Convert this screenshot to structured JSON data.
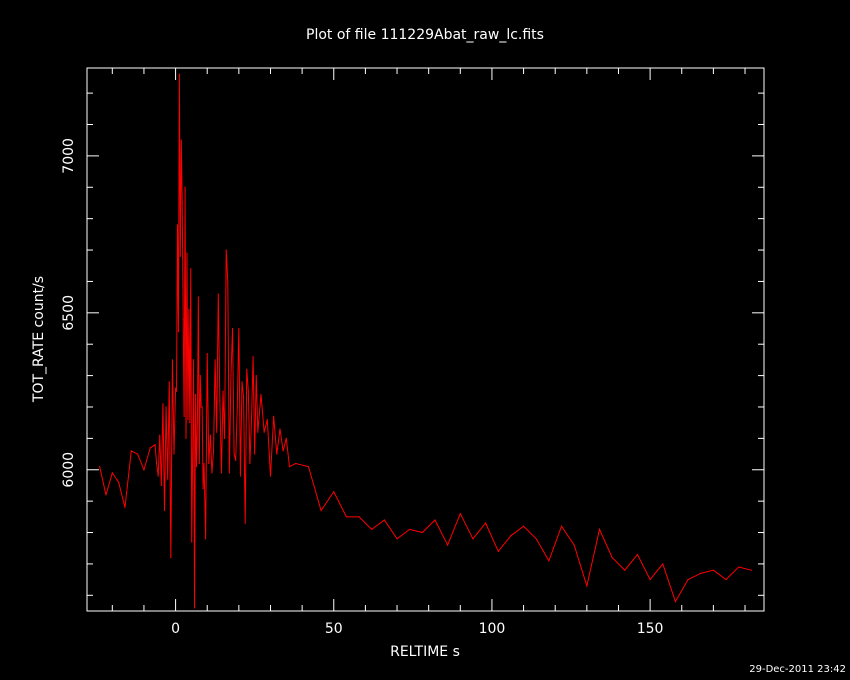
{
  "chart_data": {
    "type": "line",
    "title": "Plot of file 111229Abat_raw_lc.fits",
    "xlabel": "RELTIME  s",
    "ylabel": "TOT_RATE  count/s",
    "xlim": [
      -28,
      186
    ],
    "ylim": [
      5550,
      7280
    ],
    "x_ticks": [
      0,
      50,
      100,
      150
    ],
    "y_ticks": [
      6000,
      6500,
      7000
    ],
    "grid": false,
    "line_color": "#ff0000",
    "axes_color": "#ffffff",
    "background": "#000000",
    "series": [
      {
        "x": [
          -24,
          -22,
          -20,
          -18,
          -16,
          -14,
          -12,
          -10,
          -8,
          -6.5,
          -6,
          -5.5,
          -5,
          -4.5,
          -4,
          -3.5,
          -3,
          -2.5,
          -2,
          -1.5,
          -1,
          -0.5,
          0,
          0.3,
          0.6,
          0.9,
          1.2,
          1.5,
          1.8,
          2.1,
          2.4,
          2.7,
          3,
          3.3,
          3.6,
          3.9,
          4.2,
          4.5,
          4.8,
          5.1,
          5.4,
          5.7,
          6,
          6.3,
          6.6,
          6.9,
          7.2,
          7.5,
          7.8,
          8.1,
          8.4,
          8.7,
          9,
          9.5,
          10,
          10.5,
          11,
          11.5,
          12,
          12.5,
          13,
          13.5,
          14,
          14.5,
          15,
          15.5,
          16,
          16.5,
          17,
          17.5,
          18,
          18.5,
          19,
          19.5,
          20,
          20.5,
          21,
          21.5,
          22,
          22.5,
          23,
          23.5,
          24,
          24.5,
          25,
          25.5,
          26,
          27,
          28,
          29,
          30,
          31,
          32,
          33,
          34,
          35,
          36,
          38,
          42,
          46,
          50,
          54,
          58,
          62,
          66,
          70,
          74,
          78,
          82,
          86,
          90,
          94,
          98,
          102,
          106,
          110,
          114,
          118,
          122,
          126,
          130,
          134,
          138,
          142,
          146,
          150,
          154,
          158,
          162,
          166,
          170,
          174,
          178,
          182
        ],
        "y": [
          6010,
          5920,
          5990,
          5960,
          5880,
          6060,
          6050,
          6000,
          6070,
          6080,
          6020,
          5980,
          6110,
          5950,
          6210,
          5870,
          6200,
          5970,
          6280,
          5720,
          6350,
          6050,
          6260,
          6250,
          6780,
          6440,
          7260,
          6680,
          7050,
          6850,
          6480,
          6170,
          6900,
          6100,
          6690,
          6160,
          6510,
          6150,
          6640,
          5770,
          6050,
          6350,
          5560,
          6240,
          6010,
          6150,
          6550,
          6020,
          6300,
          6200,
          6200,
          5940,
          6020,
          5780,
          6370,
          6020,
          6110,
          5990,
          6060,
          6350,
          6120,
          6560,
          6220,
          5990,
          6250,
          6100,
          6700,
          6600,
          5990,
          6300,
          6450,
          6050,
          6030,
          6200,
          6450,
          5980,
          6280,
          6230,
          5830,
          6320,
          6250,
          6020,
          6160,
          6360,
          6050,
          6300,
          6120,
          6240,
          6120,
          6160,
          5980,
          6170,
          6050,
          6130,
          6060,
          6100,
          6010,
          6020,
          6010,
          5870,
          5930,
          5850,
          5850,
          5810,
          5840,
          5780,
          5810,
          5800,
          5840,
          5760,
          5860,
          5780,
          5830,
          5740,
          5790,
          5820,
          5780,
          5710,
          5820,
          5760,
          5630,
          5810,
          5720,
          5680,
          5730,
          5650,
          5700,
          5580,
          5650,
          5670,
          5680,
          5650,
          5690,
          5680
        ]
      }
    ]
  },
  "footer": {
    "timestamp": "29-Dec-2011 23:42"
  }
}
